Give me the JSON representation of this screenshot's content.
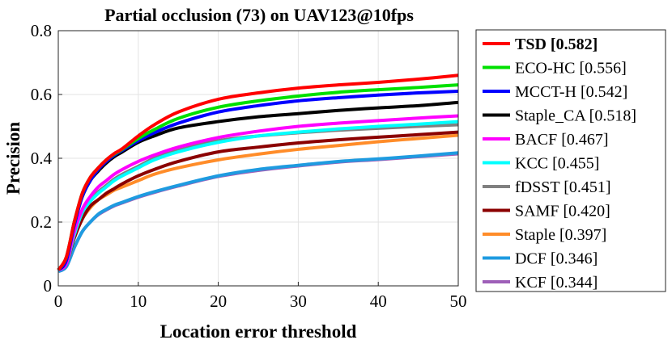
{
  "chart_data": {
    "type": "line",
    "title": "Partial occlusion (73) on UAV123@10fps",
    "xlabel": "Location error threshold",
    "ylabel": "Precision",
    "xlim": [
      0,
      50
    ],
    "ylim": [
      0,
      0.8
    ],
    "xticks": [
      "0",
      "10",
      "20",
      "30",
      "40",
      "50"
    ],
    "yticks": [
      "0",
      "0.2",
      "0.4",
      "0.6",
      "0.8"
    ],
    "grid": true,
    "legend_position": "right",
    "x": [
      0,
      1,
      2,
      3,
      4,
      5,
      6,
      7,
      8,
      10,
      12,
      15,
      20,
      25,
      30,
      35,
      40,
      45,
      50
    ],
    "series": [
      {
        "name": "TSD",
        "score": "[0.582]",
        "color": "#ff0000",
        "bold": true,
        "values": [
          0.05,
          0.09,
          0.2,
          0.29,
          0.34,
          0.37,
          0.395,
          0.415,
          0.43,
          0.47,
          0.505,
          0.545,
          0.585,
          0.605,
          0.62,
          0.63,
          0.638,
          0.648,
          0.66
        ]
      },
      {
        "name": "ECO-HC",
        "score": "[0.556]",
        "color": "#00e000",
        "bold": false,
        "values": [
          0.05,
          0.09,
          0.2,
          0.29,
          0.34,
          0.37,
          0.395,
          0.413,
          0.428,
          0.462,
          0.49,
          0.525,
          0.56,
          0.58,
          0.595,
          0.607,
          0.615,
          0.622,
          0.63
        ]
      },
      {
        "name": "MCCT-H",
        "score": "[0.542]",
        "color": "#0000ff",
        "bold": false,
        "values": [
          0.05,
          0.08,
          0.19,
          0.28,
          0.33,
          0.365,
          0.39,
          0.41,
          0.425,
          0.455,
          0.48,
          0.51,
          0.545,
          0.565,
          0.58,
          0.59,
          0.598,
          0.605,
          0.61
        ]
      },
      {
        "name": "Staple_CA",
        "score": "[0.518]",
        "color": "#000000",
        "bold": false,
        "values": [
          0.05,
          0.08,
          0.2,
          0.28,
          0.33,
          0.36,
          0.385,
          0.405,
          0.42,
          0.45,
          0.47,
          0.495,
          0.515,
          0.53,
          0.54,
          0.55,
          0.558,
          0.565,
          0.575
        ]
      },
      {
        "name": "BACF",
        "score": "[0.467]",
        "color": "#ff00ff",
        "bold": false,
        "values": [
          0.05,
          0.07,
          0.17,
          0.24,
          0.28,
          0.31,
          0.33,
          0.35,
          0.365,
          0.39,
          0.41,
          0.435,
          0.465,
          0.485,
          0.5,
          0.51,
          0.518,
          0.526,
          0.533
        ]
      },
      {
        "name": "KCC",
        "score": "[0.455]",
        "color": "#00ffff",
        "bold": false,
        "values": [
          0.05,
          0.07,
          0.16,
          0.23,
          0.265,
          0.29,
          0.31,
          0.33,
          0.345,
          0.37,
          0.395,
          0.42,
          0.45,
          0.47,
          0.482,
          0.492,
          0.5,
          0.507,
          0.515
        ]
      },
      {
        "name": "fDSST",
        "score": "[0.451]",
        "color": "#808080",
        "bold": false,
        "values": [
          0.05,
          0.07,
          0.16,
          0.235,
          0.27,
          0.295,
          0.315,
          0.335,
          0.35,
          0.375,
          0.4,
          0.425,
          0.455,
          0.47,
          0.48,
          0.488,
          0.494,
          0.5,
          0.505
        ]
      },
      {
        "name": "SAMF",
        "score": "[0.420]",
        "color": "#8b0000",
        "bold": false,
        "values": [
          0.05,
          0.07,
          0.15,
          0.21,
          0.25,
          0.27,
          0.29,
          0.305,
          0.32,
          0.345,
          0.365,
          0.39,
          0.42,
          0.435,
          0.448,
          0.458,
          0.466,
          0.474,
          0.482
        ]
      },
      {
        "name": "Staple",
        "score": "[0.397]",
        "color": "#ff8c29",
        "bold": false,
        "values": [
          0.05,
          0.07,
          0.15,
          0.21,
          0.245,
          0.27,
          0.285,
          0.3,
          0.31,
          0.33,
          0.35,
          0.37,
          0.395,
          0.413,
          0.428,
          0.44,
          0.452,
          0.462,
          0.472
        ]
      },
      {
        "name": "DCF",
        "score": "[0.346]",
        "color": "#1e9be0",
        "bold": false,
        "values": [
          0.045,
          0.06,
          0.12,
          0.17,
          0.2,
          0.225,
          0.24,
          0.253,
          0.262,
          0.28,
          0.295,
          0.315,
          0.345,
          0.365,
          0.378,
          0.39,
          0.398,
          0.407,
          0.417
        ]
      },
      {
        "name": "KCF",
        "score": "[0.344]",
        "color": "#9e5fb8",
        "bold": false,
        "values": [
          0.045,
          0.06,
          0.12,
          0.17,
          0.2,
          0.223,
          0.238,
          0.251,
          0.26,
          0.278,
          0.293,
          0.313,
          0.343,
          0.362,
          0.376,
          0.388,
          0.396,
          0.405,
          0.414
        ]
      }
    ]
  }
}
